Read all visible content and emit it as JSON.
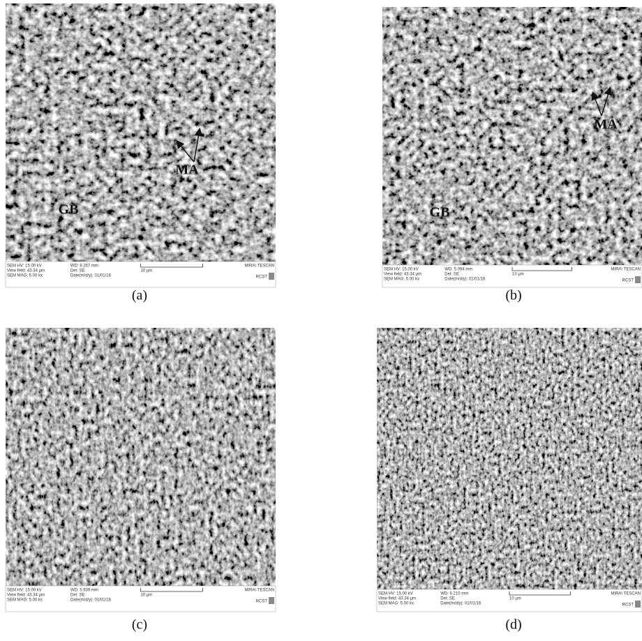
{
  "panels": [
    {
      "caption": "(a)",
      "annotations": [
        "MA",
        "GB"
      ],
      "info": {
        "hv": "SEM HV: 15.00 kV",
        "wd": "WD: 9.267 mm",
        "brand": "MIRA\\ TESCAN",
        "field": "View field: 43.34 µm",
        "det": "Det: SE",
        "scale": "10 µm",
        "mag": "SEM MAG: 5.00 kx",
        "date": "Date(m/d/y): 01/01/16",
        "logo": "RCST"
      }
    },
    {
      "caption": "(b)",
      "annotations": [
        "MA",
        "GB"
      ],
      "info": {
        "hv": "SEM HV: 15.00 kV",
        "wd": "WD: 5.094 mm",
        "brand": "MIRA\\ TESCAN",
        "field": "View field: 43.34 µm",
        "det": "Det: SE",
        "scale": "10 µm",
        "mag": "SEM MAG: 5.00 kx",
        "date": "Date(m/d/y): 01/01/16",
        "logo": "RCST"
      }
    },
    {
      "caption": "(c)",
      "annotations": [],
      "info": {
        "hv": "SEM HV: 15.00 kV",
        "wd": "WD: 5.939 mm",
        "brand": "MIRA\\ TESCAN",
        "field": "View field: 43.34 µm",
        "det": "Det: SE",
        "scale": "10 µm",
        "mag": "SEM MAG: 5.00 kx",
        "date": "Date(m/d/y): 01/01/16",
        "logo": "RCST"
      }
    },
    {
      "caption": "(d)",
      "annotations": [],
      "info": {
        "hv": "SEM HV: 15.00 kV",
        "wd": "WD: 6.210 mm",
        "brand": "MIRA\\ TESCAN",
        "field": "View field: 43.34 µm",
        "det": "Det: SE",
        "scale": "10 µm",
        "mag": "SEM MAG: 5.00 kx",
        "date": "Date(m/d/y): 01/01/16",
        "logo": "RCST"
      }
    }
  ]
}
